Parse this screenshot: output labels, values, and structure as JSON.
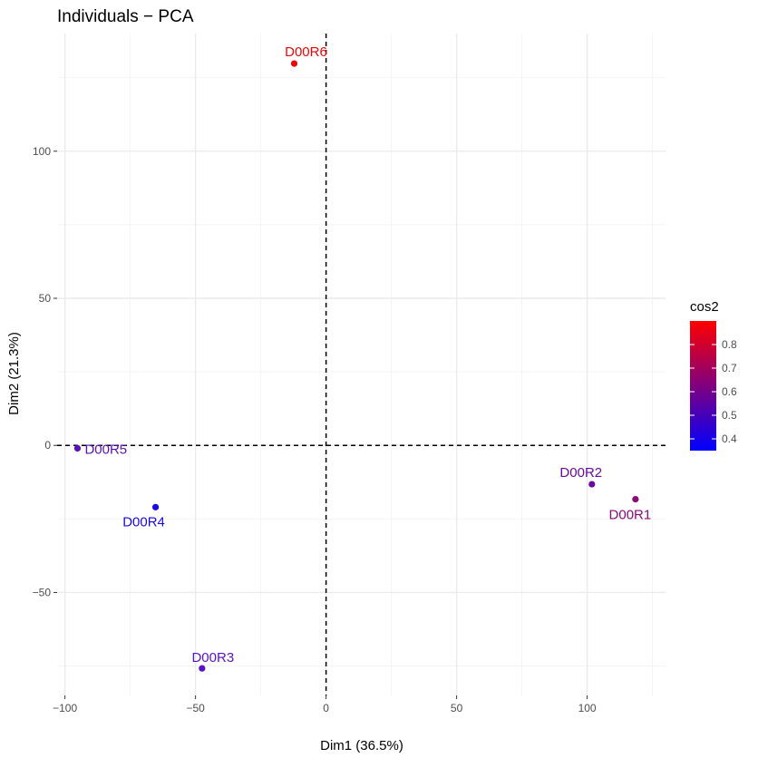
{
  "chart_data": {
    "type": "scatter",
    "title": "Individuals − PCA",
    "xlabel": "Dim1 (36.5%)",
    "ylabel": "Dim2 (21.3%)",
    "xlim": [
      -103,
      130
    ],
    "ylim": [
      -85,
      140
    ],
    "xticks": [
      -100,
      -50,
      0,
      50,
      100
    ],
    "xtick_labels": [
      "−100",
      "−50",
      "0",
      "50",
      "100"
    ],
    "yticks": [
      -50,
      0,
      50,
      100
    ],
    "ytick_labels": [
      "−50",
      "0",
      "50",
      "100"
    ],
    "grid": true,
    "reference_lines": {
      "x": 0,
      "y": 0,
      "style": "dashed"
    },
    "points": [
      {
        "label": "D00R1",
        "x": 118.5,
        "y": -18.3,
        "cos2": 0.65,
        "color": "#8a0a7a"
      },
      {
        "label": "D00R2",
        "x": 101.8,
        "y": -13.2,
        "cos2": 0.55,
        "color": "#6a0aa0"
      },
      {
        "label": "D00R3",
        "x": -47.5,
        "y": -75.8,
        "cos2": 0.5,
        "color": "#5a12c8"
      },
      {
        "label": "D00R4",
        "x": -65.3,
        "y": -21.0,
        "cos2": 0.4,
        "color": "#1a0ae8"
      },
      {
        "label": "D00R5",
        "x": -95.2,
        "y": -1.0,
        "cos2": 0.52,
        "color": "#5a12b8"
      },
      {
        "label": "D00R6",
        "x": -12.2,
        "y": 129.8,
        "cos2": 0.9,
        "color": "#ef0505"
      }
    ],
    "legend": {
      "title": "cos2",
      "position": "right",
      "range": [
        0.35,
        0.9
      ],
      "ticks": [
        0.4,
        0.5,
        0.6,
        0.7,
        0.8
      ],
      "tick_labels": [
        "0.4",
        "0.5",
        "0.6",
        "0.7",
        "0.8"
      ],
      "low_color": "#0000ff",
      "high_color": "#ff0000"
    }
  }
}
